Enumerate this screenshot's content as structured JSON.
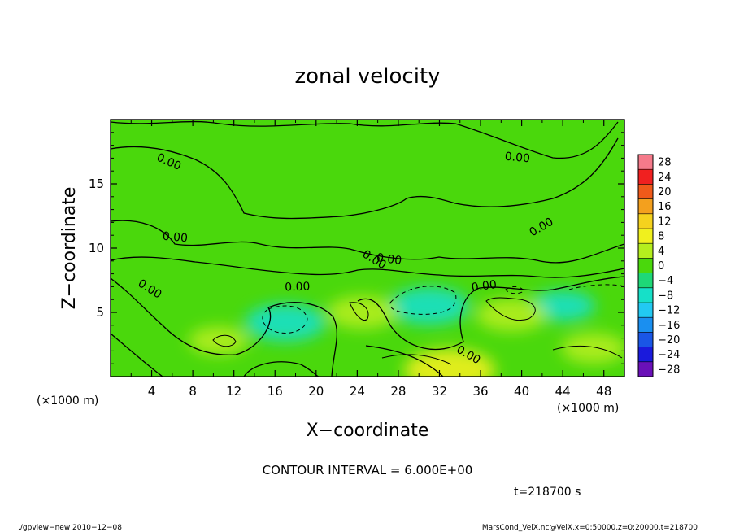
{
  "chart_data": {
    "type": "heatmap",
    "title": "zonal velocity",
    "xlabel": "X−coordinate",
    "ylabel": "Z−coordinate",
    "x_unit": "(×1000 m)",
    "y_unit": "(×1000 m)",
    "xlim": [
      0,
      50
    ],
    "ylim": [
      0,
      20
    ],
    "xticks": [
      4,
      8,
      12,
      16,
      20,
      24,
      28,
      32,
      36,
      40,
      44,
      48
    ],
    "xtick_labels": [
      "4",
      "8",
      "12",
      "16",
      "20",
      "24",
      "28",
      "32",
      "36",
      "40",
      "44",
      "48"
    ],
    "yticks": [
      5,
      10,
      15
    ],
    "ytick_labels": [
      "5",
      "10",
      "15"
    ],
    "contour_label": "0.00",
    "contour_interval_text": "CONTOUR INTERVAL = 6.000E+00",
    "time_text": "t=218700 s",
    "colorbar": {
      "levels": [
        28,
        24,
        20,
        16,
        12,
        8,
        4,
        0,
        -4,
        -8,
        -12,
        -16,
        -20,
        -24,
        -28
      ],
      "labels": [
        "28",
        "24",
        "20",
        "16",
        "12",
        "8",
        "4",
        "0",
        "−4",
        "−8",
        "−12",
        "−16",
        "−20",
        "−24",
        "−28"
      ],
      "colors": [
        "#f57a8a",
        "#f02020",
        "#f05a1a",
        "#f3a01e",
        "#f5d21e",
        "#f0f01e",
        "#b4ee1e",
        "#4ad80c",
        "#1ed877",
        "#16e0c8",
        "#22c9f2",
        "#1a8ff0",
        "#1a56e6",
        "#1a1adc",
        "#6a10b8"
      ]
    },
    "field": {
      "background_value": 0,
      "features": [
        {
          "kind": "negative",
          "x": 17,
          "z": 4.2,
          "value": -8
        },
        {
          "kind": "negative",
          "x": 31,
          "z": 5.5,
          "value": -8
        },
        {
          "kind": "negative",
          "x": 44,
          "z": 5.5,
          "value": -5
        },
        {
          "kind": "positive",
          "x": 24.5,
          "z": 5,
          "value": 6
        },
        {
          "kind": "positive",
          "x": 39,
          "z": 4.8,
          "value": 6
        },
        {
          "kind": "positive",
          "x": 33,
          "z": 0.5,
          "value": 10
        },
        {
          "kind": "positive",
          "x": 47,
          "z": 2.2,
          "value": 5
        },
        {
          "kind": "positive",
          "x": 10.5,
          "z": 2.8,
          "value": 4
        }
      ]
    }
  },
  "footer": {
    "left": "./gpview−new  2010−12−08",
    "right": "MarsCond_VelX.nc@VelX,x=0:50000,z=0:20000,t=218700"
  }
}
